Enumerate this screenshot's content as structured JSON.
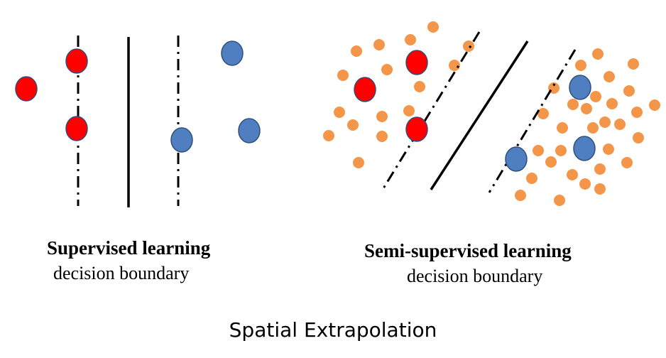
{
  "title": "Spatial Extrapolation",
  "panels": {
    "supervised": {
      "title": "Supervised learning",
      "subtitle": "decision boundary"
    },
    "semi_supervised": {
      "title": "Semi-supervised learning",
      "subtitle": "decision boundary"
    }
  },
  "colors": {
    "class_a": "#ff0000",
    "class_b": "#4f7fc0",
    "unlabeled": "#f4964a",
    "outline": "#2f4f7a",
    "line": "#000000"
  }
}
